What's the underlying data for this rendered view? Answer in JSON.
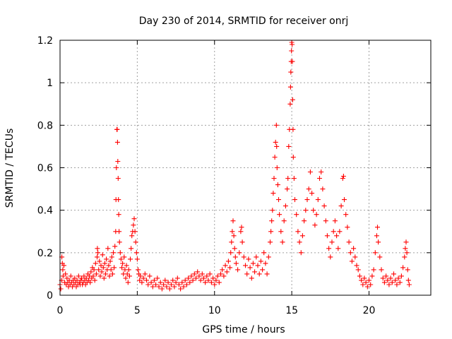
{
  "chart_data": {
    "type": "scatter",
    "title": "Day 230 of 2014, SRMTID for receiver onrj",
    "xlabel": "GPS time / hours",
    "ylabel": "SRMTID / TECUs",
    "xlim": [
      0,
      24
    ],
    "ylim": [
      0,
      1.2
    ],
    "xticks": [
      0,
      5,
      10,
      15,
      20
    ],
    "yticks": [
      0,
      0.2,
      0.4,
      0.6,
      0.8,
      1,
      1.2
    ],
    "xtick_labels": [
      "0",
      "5",
      "10",
      "15",
      "20"
    ],
    "ytick_labels": [
      "0",
      "0.2",
      "0.4",
      "0.6",
      "0.8",
      "1",
      "1.2"
    ],
    "grid": true,
    "marker": "+",
    "color": "#ff0000",
    "series": [
      {
        "name": "SRMTID",
        "points": [
          [
            0.0,
            0.05
          ],
          [
            0.05,
            0.03
          ],
          [
            0.1,
            0.07
          ],
          [
            0.12,
            0.18
          ],
          [
            0.15,
            0.15
          ],
          [
            0.18,
            0.12
          ],
          [
            0.2,
            0.09
          ],
          [
            0.25,
            0.14
          ],
          [
            0.3,
            0.06
          ],
          [
            0.35,
            0.1
          ],
          [
            0.4,
            0.05
          ],
          [
            0.45,
            0.08
          ],
          [
            0.5,
            0.06
          ],
          [
            0.55,
            0.04
          ],
          [
            0.6,
            0.07
          ],
          [
            0.65,
            0.05
          ],
          [
            0.7,
            0.09
          ],
          [
            0.75,
            0.06
          ],
          [
            0.8,
            0.04
          ],
          [
            0.85,
            0.07
          ],
          [
            0.9,
            0.05
          ],
          [
            0.95,
            0.08
          ],
          [
            1.0,
            0.06
          ],
          [
            1.05,
            0.04
          ],
          [
            1.1,
            0.07
          ],
          [
            1.15,
            0.05
          ],
          [
            1.2,
            0.09
          ],
          [
            1.25,
            0.06
          ],
          [
            1.3,
            0.05
          ],
          [
            1.35,
            0.07
          ],
          [
            1.4,
            0.08
          ],
          [
            1.45,
            0.05
          ],
          [
            1.5,
            0.06
          ],
          [
            1.55,
            0.09
          ],
          [
            1.6,
            0.07
          ],
          [
            1.65,
            0.05
          ],
          [
            1.7,
            0.08
          ],
          [
            1.75,
            0.06
          ],
          [
            1.8,
            0.1
          ],
          [
            1.85,
            0.07
          ],
          [
            1.9,
            0.09
          ],
          [
            1.95,
            0.06
          ],
          [
            2.0,
            0.11
          ],
          [
            2.05,
            0.08
          ],
          [
            2.1,
            0.13
          ],
          [
            2.15,
            0.09
          ],
          [
            2.2,
            0.12
          ],
          [
            2.25,
            0.07
          ],
          [
            2.3,
            0.15
          ],
          [
            2.35,
            0.1
          ],
          [
            2.4,
            0.18
          ],
          [
            2.42,
            0.22
          ],
          [
            2.45,
            0.2
          ],
          [
            2.5,
            0.12
          ],
          [
            2.55,
            0.16
          ],
          [
            2.6,
            0.09
          ],
          [
            2.65,
            0.14
          ],
          [
            2.7,
            0.11
          ],
          [
            2.75,
            0.19
          ],
          [
            2.8,
            0.13
          ],
          [
            2.85,
            0.08
          ],
          [
            2.9,
            0.15
          ],
          [
            2.95,
            0.1
          ],
          [
            3.0,
            0.17
          ],
          [
            3.05,
            0.12
          ],
          [
            3.1,
            0.22
          ],
          [
            3.15,
            0.14
          ],
          [
            3.2,
            0.09
          ],
          [
            3.25,
            0.16
          ],
          [
            3.3,
            0.12
          ],
          [
            3.35,
            0.18
          ],
          [
            3.4,
            0.1
          ],
          [
            3.45,
            0.2
          ],
          [
            3.5,
            0.13
          ],
          [
            3.55,
            0.23
          ],
          [
            3.6,
            0.3
          ],
          [
            3.62,
            0.45
          ],
          [
            3.65,
            0.6
          ],
          [
            3.68,
            0.78
          ],
          [
            3.7,
            0.78
          ],
          [
            3.72,
            0.72
          ],
          [
            3.74,
            0.63
          ],
          [
            3.76,
            0.55
          ],
          [
            3.78,
            0.45
          ],
          [
            3.8,
            0.38
          ],
          [
            3.82,
            0.3
          ],
          [
            3.85,
            0.25
          ],
          [
            3.9,
            0.2
          ],
          [
            3.95,
            0.17
          ],
          [
            4.0,
            0.13
          ],
          [
            4.05,
            0.15
          ],
          [
            4.1,
            0.1
          ],
          [
            4.15,
            0.18
          ],
          [
            4.2,
            0.12
          ],
          [
            4.25,
            0.08
          ],
          [
            4.3,
            0.14
          ],
          [
            4.35,
            0.1
          ],
          [
            4.4,
            0.06
          ],
          [
            4.45,
            0.12
          ],
          [
            4.5,
            0.09
          ],
          [
            4.55,
            0.17
          ],
          [
            4.6,
            0.22
          ],
          [
            4.65,
            0.28
          ],
          [
            4.7,
            0.3
          ],
          [
            4.75,
            0.33
          ],
          [
            4.8,
            0.36
          ],
          [
            4.85,
            0.3
          ],
          [
            4.9,
            0.25
          ],
          [
            4.95,
            0.2
          ],
          [
            5.0,
            0.17
          ],
          [
            5.05,
            0.12
          ],
          [
            5.1,
            0.1
          ],
          [
            5.15,
            0.07
          ],
          [
            5.2,
            0.09
          ],
          [
            5.3,
            0.06
          ],
          [
            5.4,
            0.08
          ],
          [
            5.5,
            0.1
          ],
          [
            5.6,
            0.07
          ],
          [
            5.7,
            0.05
          ],
          [
            5.8,
            0.09
          ],
          [
            5.9,
            0.06
          ],
          [
            6.0,
            0.04
          ],
          [
            6.1,
            0.07
          ],
          [
            6.2,
            0.05
          ],
          [
            6.3,
            0.08
          ],
          [
            6.4,
            0.04
          ],
          [
            6.5,
            0.06
          ],
          [
            6.6,
            0.03
          ],
          [
            6.7,
            0.05
          ],
          [
            6.8,
            0.07
          ],
          [
            6.9,
            0.04
          ],
          [
            7.0,
            0.06
          ],
          [
            7.1,
            0.03
          ],
          [
            7.2,
            0.05
          ],
          [
            7.3,
            0.07
          ],
          [
            7.4,
            0.04
          ],
          [
            7.5,
            0.06
          ],
          [
            7.6,
            0.08
          ],
          [
            7.7,
            0.05
          ],
          [
            7.8,
            0.03
          ],
          [
            7.9,
            0.06
          ],
          [
            8.0,
            0.04
          ],
          [
            8.1,
            0.07
          ],
          [
            8.2,
            0.05
          ],
          [
            8.3,
            0.08
          ],
          [
            8.4,
            0.06
          ],
          [
            8.5,
            0.09
          ],
          [
            8.6,
            0.07
          ],
          [
            8.7,
            0.1
          ],
          [
            8.8,
            0.08
          ],
          [
            8.9,
            0.11
          ],
          [
            9.0,
            0.09
          ],
          [
            9.1,
            0.07
          ],
          [
            9.2,
            0.1
          ],
          [
            9.3,
            0.08
          ],
          [
            9.4,
            0.06
          ],
          [
            9.5,
            0.09
          ],
          [
            9.6,
            0.07
          ],
          [
            9.7,
            0.1
          ],
          [
            9.8,
            0.06
          ],
          [
            9.9,
            0.08
          ],
          [
            10.0,
            0.05
          ],
          [
            10.1,
            0.07
          ],
          [
            10.2,
            0.09
          ],
          [
            10.3,
            0.06
          ],
          [
            10.4,
            0.1
          ],
          [
            10.5,
            0.12
          ],
          [
            10.6,
            0.09
          ],
          [
            10.7,
            0.14
          ],
          [
            10.8,
            0.11
          ],
          [
            10.9,
            0.16
          ],
          [
            11.0,
            0.13
          ],
          [
            11.05,
            0.2
          ],
          [
            11.1,
            0.25
          ],
          [
            11.15,
            0.3
          ],
          [
            11.2,
            0.35
          ],
          [
            11.25,
            0.28
          ],
          [
            11.3,
            0.22
          ],
          [
            11.35,
            0.18
          ],
          [
            11.4,
            0.15
          ],
          [
            11.5,
            0.12
          ],
          [
            11.6,
            0.2
          ],
          [
            11.7,
            0.3
          ],
          [
            11.75,
            0.32
          ],
          [
            11.8,
            0.25
          ],
          [
            11.9,
            0.18
          ],
          [
            12.0,
            0.14
          ],
          [
            12.1,
            0.1
          ],
          [
            12.2,
            0.17
          ],
          [
            12.3,
            0.13
          ],
          [
            12.4,
            0.08
          ],
          [
            12.5,
            0.15
          ],
          [
            12.6,
            0.11
          ],
          [
            12.7,
            0.18
          ],
          [
            12.8,
            0.14
          ],
          [
            12.9,
            0.1
          ],
          [
            13.0,
            0.16
          ],
          [
            13.1,
            0.12
          ],
          [
            13.2,
            0.2
          ],
          [
            13.3,
            0.15
          ],
          [
            13.4,
            0.1
          ],
          [
            13.5,
            0.18
          ],
          [
            13.6,
            0.25
          ],
          [
            13.65,
            0.3
          ],
          [
            13.7,
            0.35
          ],
          [
            13.75,
            0.4
          ],
          [
            13.8,
            0.48
          ],
          [
            13.85,
            0.55
          ],
          [
            13.9,
            0.65
          ],
          [
            13.95,
            0.72
          ],
          [
            14.0,
            0.8
          ],
          [
            14.02,
            0.7
          ],
          [
            14.05,
            0.6
          ],
          [
            14.1,
            0.52
          ],
          [
            14.15,
            0.45
          ],
          [
            14.2,
            0.38
          ],
          [
            14.3,
            0.3
          ],
          [
            14.4,
            0.25
          ],
          [
            14.5,
            0.35
          ],
          [
            14.6,
            0.42
          ],
          [
            14.7,
            0.5
          ],
          [
            14.75,
            0.55
          ],
          [
            14.8,
            0.7
          ],
          [
            14.85,
            0.78
          ],
          [
            14.9,
            0.9
          ],
          [
            14.92,
            0.98
          ],
          [
            14.94,
            1.05
          ],
          [
            14.96,
            1.1
          ],
          [
            14.98,
            1.15
          ],
          [
            15.0,
            1.19
          ],
          [
            15.02,
            1.18
          ],
          [
            15.04,
            1.1
          ],
          [
            15.06,
            0.92
          ],
          [
            15.08,
            0.78
          ],
          [
            15.1,
            0.65
          ],
          [
            15.15,
            0.55
          ],
          [
            15.2,
            0.45
          ],
          [
            15.3,
            0.38
          ],
          [
            15.4,
            0.3
          ],
          [
            15.5,
            0.25
          ],
          [
            15.6,
            0.2
          ],
          [
            15.7,
            0.28
          ],
          [
            15.8,
            0.35
          ],
          [
            15.9,
            0.4
          ],
          [
            16.0,
            0.45
          ],
          [
            16.1,
            0.5
          ],
          [
            16.2,
            0.58
          ],
          [
            16.3,
            0.48
          ],
          [
            16.4,
            0.4
          ],
          [
            16.5,
            0.33
          ],
          [
            16.6,
            0.38
          ],
          [
            16.7,
            0.45
          ],
          [
            16.8,
            0.55
          ],
          [
            16.9,
            0.58
          ],
          [
            17.0,
            0.5
          ],
          [
            17.1,
            0.42
          ],
          [
            17.2,
            0.35
          ],
          [
            17.3,
            0.28
          ],
          [
            17.4,
            0.22
          ],
          [
            17.5,
            0.18
          ],
          [
            17.6,
            0.25
          ],
          [
            17.7,
            0.3
          ],
          [
            17.8,
            0.35
          ],
          [
            17.9,
            0.28
          ],
          [
            18.0,
            0.22
          ],
          [
            18.1,
            0.3
          ],
          [
            18.2,
            0.42
          ],
          [
            18.3,
            0.55
          ],
          [
            18.35,
            0.56
          ],
          [
            18.4,
            0.45
          ],
          [
            18.5,
            0.38
          ],
          [
            18.6,
            0.32
          ],
          [
            18.7,
            0.25
          ],
          [
            18.8,
            0.2
          ],
          [
            18.9,
            0.16
          ],
          [
            19.0,
            0.22
          ],
          [
            19.1,
            0.18
          ],
          [
            19.2,
            0.14
          ],
          [
            19.3,
            0.12
          ],
          [
            19.4,
            0.09
          ],
          [
            19.5,
            0.07
          ],
          [
            19.6,
            0.05
          ],
          [
            19.7,
            0.08
          ],
          [
            19.8,
            0.06
          ],
          [
            19.9,
            0.04
          ],
          [
            20.0,
            0.07
          ],
          [
            20.1,
            0.05
          ],
          [
            20.2,
            0.09
          ],
          [
            20.3,
            0.12
          ],
          [
            20.4,
            0.2
          ],
          [
            20.5,
            0.28
          ],
          [
            20.55,
            0.32
          ],
          [
            20.6,
            0.25
          ],
          [
            20.7,
            0.18
          ],
          [
            20.8,
            0.12
          ],
          [
            20.9,
            0.08
          ],
          [
            21.0,
            0.06
          ],
          [
            21.1,
            0.09
          ],
          [
            21.2,
            0.07
          ],
          [
            21.3,
            0.05
          ],
          [
            21.4,
            0.08
          ],
          [
            21.5,
            0.06
          ],
          [
            21.6,
            0.1
          ],
          [
            21.7,
            0.07
          ],
          [
            21.8,
            0.05
          ],
          [
            21.9,
            0.08
          ],
          [
            22.0,
            0.06
          ],
          [
            22.1,
            0.09
          ],
          [
            22.2,
            0.13
          ],
          [
            22.3,
            0.18
          ],
          [
            22.35,
            0.22
          ],
          [
            22.4,
            0.25
          ],
          [
            22.45,
            0.2
          ],
          [
            22.5,
            0.12
          ],
          [
            22.55,
            0.07
          ],
          [
            22.6,
            0.05
          ]
        ]
      }
    ]
  }
}
